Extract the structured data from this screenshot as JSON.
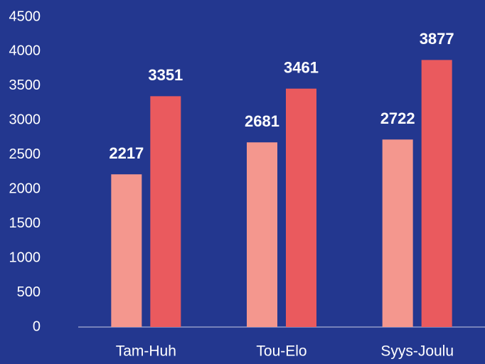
{
  "chart_data": {
    "type": "bar",
    "categories": [
      "Tam-Huh",
      "Tou-Elo",
      "Syys-Joulu"
    ],
    "series": [
      {
        "color": "#f4978e",
        "values": [
          2217,
          2681,
          2722
        ]
      },
      {
        "color": "#ea5a5e",
        "values": [
          3351,
          3461,
          3877
        ]
      }
    ],
    "ylim": [
      0,
      4500
    ],
    "yticks": [
      0,
      500,
      1000,
      1500,
      2000,
      2500,
      3000,
      3500,
      4000,
      4500
    ],
    "grid": false
  }
}
